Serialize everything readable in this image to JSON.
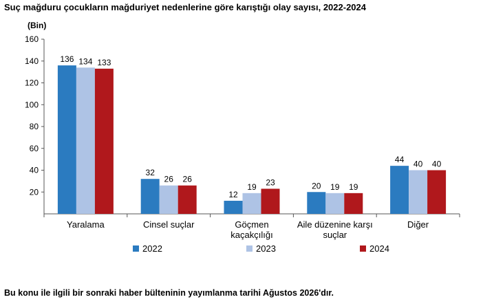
{
  "page": {
    "title": "Suç mağduru çocukların mağduriyet nedenlerine göre karıştığı olay sayısı, 2022-2024",
    "footer": "Bu konu ile ilgili bir sonraki haber bülteninin yayımlanma tarihi Ağustos 2026'dır."
  },
  "chart_data": {
    "type": "bar",
    "title": "Suç mağduru çocukların mağduriyet nedenlerine göre karıştığı olay sayısı, 2022-2024",
    "ylabel": "(Bin)",
    "xlabel": "",
    "categories": [
      [
        "Yaralama"
      ],
      [
        "Cinsel suçlar"
      ],
      [
        "Göçmen",
        "kaçakçılığı"
      ],
      [
        "Aile düzenine karşı",
        "suçlar"
      ],
      [
        "Diğer"
      ]
    ],
    "series": [
      {
        "name": "2022",
        "color": "#2b7bc0",
        "values": [
          136,
          32,
          12,
          20,
          44
        ]
      },
      {
        "name": "2023",
        "color": "#aec3e5",
        "values": [
          134,
          26,
          19,
          19,
          40
        ]
      },
      {
        "name": "2024",
        "color": "#b0181c",
        "values": [
          133,
          26,
          23,
          19,
          40
        ]
      }
    ],
    "ylim": [
      0,
      160
    ],
    "yticks": [
      20,
      40,
      60,
      80,
      100,
      120,
      140,
      160
    ],
    "grid": false,
    "legend": "bottom"
  }
}
